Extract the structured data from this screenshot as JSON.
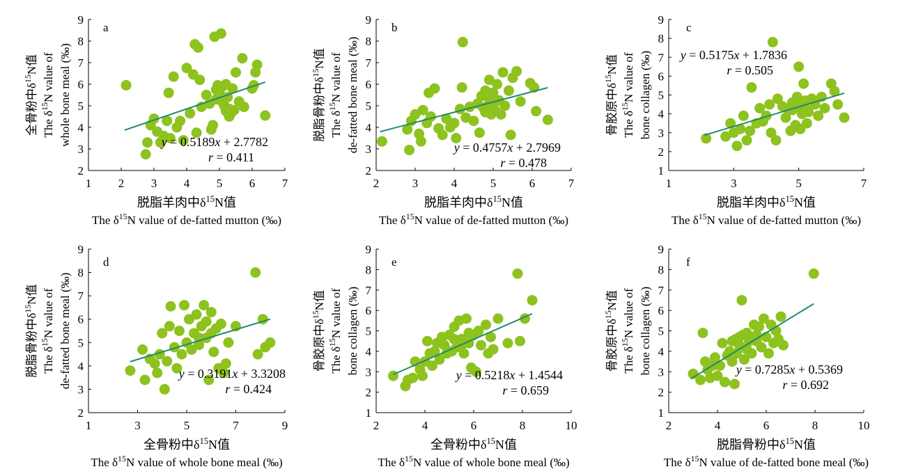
{
  "colors": {
    "point": "#8dc21f",
    "fit_line": "#1e8a6e",
    "axis": "#000000"
  },
  "chart_data": [
    {
      "type": "scatter",
      "panel": "a",
      "xlabel_cn": "脱脂羊肉中δ15N值",
      "xlabel_en": "The δ15N value of de-fatted mutton (‰)",
      "ylabel_cn": "全骨粉中δ15N值",
      "ylabel_en": "The δ15N value of whole bone meal (‰)",
      "xlim": [
        1,
        7
      ],
      "ylim": [
        2,
        9
      ],
      "xticks": [
        1,
        2,
        3,
        4,
        5,
        6,
        7
      ],
      "yticks": [
        2,
        3,
        4,
        5,
        6,
        7,
        8,
        9
      ],
      "equation": "y = 0.5189x + 2.7782",
      "r": "r = 0.411",
      "fit": {
        "slope": 0.5189,
        "intercept": 2.7782,
        "x_range": [
          2.1,
          6.4
        ]
      },
      "points": [
        [
          2.15,
          5.95
        ],
        [
          2.75,
          2.75
        ],
        [
          2.8,
          3.3
        ],
        [
          2.9,
          4.1
        ],
        [
          3.0,
          4.4
        ],
        [
          3.1,
          3.8
        ],
        [
          3.2,
          3.3
        ],
        [
          3.3,
          3.6
        ],
        [
          3.4,
          4.3
        ],
        [
          3.45,
          5.6
        ],
        [
          3.5,
          3.5
        ],
        [
          3.6,
          6.35
        ],
        [
          3.7,
          4.0
        ],
        [
          3.8,
          4.3
        ],
        [
          3.9,
          3.4
        ],
        [
          4.0,
          6.75
        ],
        [
          4.1,
          4.65
        ],
        [
          4.2,
          6.45
        ],
        [
          4.25,
          7.85
        ],
        [
          4.3,
          3.75
        ],
        [
          4.35,
          7.7
        ],
        [
          4.4,
          6.2
        ],
        [
          4.45,
          4.95
        ],
        [
          4.6,
          5.5
        ],
        [
          4.7,
          5.1
        ],
        [
          4.75,
          3.9
        ],
        [
          4.8,
          4.1
        ],
        [
          4.85,
          8.2
        ],
        [
          4.9,
          5.3
        ],
        [
          4.95,
          5.95
        ],
        [
          5.0,
          5.6
        ],
        [
          5.05,
          8.35
        ],
        [
          5.1,
          5.9
        ],
        [
          5.15,
          5.0
        ],
        [
          5.2,
          4.75
        ],
        [
          5.25,
          5.4
        ],
        [
          5.3,
          4.5
        ],
        [
          5.35,
          4.65
        ],
        [
          5.4,
          5.8
        ],
        [
          5.45,
          4.8
        ],
        [
          5.5,
          6.55
        ],
        [
          5.6,
          5.2
        ],
        [
          5.7,
          7.2
        ],
        [
          5.75,
          4.95
        ],
        [
          6.0,
          5.8
        ],
        [
          6.05,
          5.95
        ],
        [
          6.1,
          6.55
        ],
        [
          6.15,
          6.9
        ],
        [
          6.4,
          4.55
        ],
        [
          5.0,
          5.4
        ],
        [
          5.1,
          5.15
        ],
        [
          5.3,
          4.85
        ],
        [
          4.9,
          5.75
        ],
        [
          5.2,
          6.0
        ]
      ]
    },
    {
      "type": "scatter",
      "panel": "b",
      "xlabel_cn": "脱脂羊肉中δ15N值",
      "xlabel_en": "The δ15N value of de-fatted mutton (‰)",
      "ylabel_cn": "脱脂骨粉中δ15N值",
      "ylabel_en": "The δ15N value of de-fatted bone meal (‰)",
      "xlim": [
        2,
        7
      ],
      "ylim": [
        2,
        9
      ],
      "xticks": [
        2,
        3,
        4,
        5,
        6,
        7
      ],
      "yticks": [
        2,
        3,
        4,
        5,
        6,
        7,
        8,
        9
      ],
      "equation": "y = 0.4757x + 2.7969",
      "r": "r = 0.478",
      "fit": {
        "slope": 0.4757,
        "intercept": 2.7969,
        "x_range": [
          2.1,
          6.4
        ]
      },
      "points": [
        [
          2.15,
          3.35
        ],
        [
          2.8,
          3.9
        ],
        [
          2.85,
          2.95
        ],
        [
          2.9,
          4.3
        ],
        [
          3.0,
          4.6
        ],
        [
          3.1,
          3.7
        ],
        [
          3.15,
          3.35
        ],
        [
          3.2,
          4.8
        ],
        [
          3.3,
          4.2
        ],
        [
          3.35,
          5.6
        ],
        [
          3.4,
          4.5
        ],
        [
          3.5,
          5.8
        ],
        [
          3.6,
          3.95
        ],
        [
          3.7,
          3.65
        ],
        [
          3.8,
          4.4
        ],
        [
          3.9,
          4.0
        ],
        [
          4.0,
          4.2
        ],
        [
          4.05,
          3.5
        ],
        [
          4.15,
          4.85
        ],
        [
          4.2,
          5.85
        ],
        [
          4.22,
          7.95
        ],
        [
          4.3,
          4.45
        ],
        [
          4.4,
          4.95
        ],
        [
          4.5,
          4.3
        ],
        [
          4.6,
          5.1
        ],
        [
          4.65,
          3.75
        ],
        [
          4.7,
          5.45
        ],
        [
          4.75,
          4.9
        ],
        [
          4.8,
          5.7
        ],
        [
          4.85,
          5.0
        ],
        [
          4.9,
          6.2
        ],
        [
          4.95,
          4.6
        ],
        [
          5.0,
          5.6
        ],
        [
          5.05,
          4.8
        ],
        [
          5.1,
          6.0
        ],
        [
          5.15,
          5.25
        ],
        [
          5.2,
          4.6
        ],
        [
          5.25,
          6.55
        ],
        [
          5.3,
          5.0
        ],
        [
          5.4,
          5.7
        ],
        [
          5.45,
          3.65
        ],
        [
          5.5,
          6.3
        ],
        [
          5.6,
          6.6
        ],
        [
          5.7,
          5.2
        ],
        [
          5.95,
          6.05
        ],
        [
          6.05,
          5.85
        ],
        [
          6.1,
          4.75
        ],
        [
          6.4,
          4.35
        ],
        [
          4.9,
          5.35
        ],
        [
          5.0,
          4.95
        ],
        [
          4.8,
          4.7
        ]
      ]
    },
    {
      "type": "scatter",
      "panel": "c",
      "xlabel_cn": "脱脂羊肉中δ15N值",
      "xlabel_en": "The δ15N value of de-fatted mutton (‰)",
      "ylabel_cn": "骨胶原中δ15N值",
      "ylabel_en": "The δ15N value of bone collagen (‰)",
      "xlim": [
        1,
        7
      ],
      "ylim": [
        1,
        9
      ],
      "xticks": [
        1,
        3,
        5,
        7
      ],
      "yticks": [
        1,
        2,
        3,
        4,
        5,
        6,
        7,
        8,
        9
      ],
      "equation": "y = 0.5175x + 1.7836",
      "r": "r = 0.505",
      "fit": {
        "slope": 0.5175,
        "intercept": 1.7836,
        "x_range": [
          2.1,
          6.4
        ]
      },
      "points": [
        [
          2.15,
          2.7
        ],
        [
          2.75,
          2.8
        ],
        [
          2.9,
          3.5
        ],
        [
          3.0,
          3.0
        ],
        [
          3.1,
          2.3
        ],
        [
          3.2,
          3.2
        ],
        [
          3.3,
          3.9
        ],
        [
          3.4,
          2.6
        ],
        [
          3.5,
          3.1
        ],
        [
          3.55,
          5.4
        ],
        [
          3.7,
          3.5
        ],
        [
          3.8,
          4.3
        ],
        [
          3.9,
          3.6
        ],
        [
          4.0,
          3.9
        ],
        [
          4.1,
          4.5
        ],
        [
          4.15,
          3.0
        ],
        [
          4.2,
          7.8
        ],
        [
          4.3,
          2.6
        ],
        [
          4.35,
          4.8
        ],
        [
          4.5,
          4.4
        ],
        [
          4.6,
          3.8
        ],
        [
          4.7,
          4.2
        ],
        [
          4.75,
          3.1
        ],
        [
          4.8,
          4.6
        ],
        [
          4.9,
          3.4
        ],
        [
          4.95,
          4.9
        ],
        [
          5.0,
          6.5
        ],
        [
          5.05,
          3.2
        ],
        [
          5.1,
          4.0
        ],
        [
          5.15,
          5.6
        ],
        [
          5.2,
          4.3
        ],
        [
          5.25,
          3.5
        ],
        [
          5.3,
          4.1
        ],
        [
          5.4,
          4.8
        ],
        [
          5.5,
          4.5
        ],
        [
          5.6,
          3.9
        ],
        [
          5.7,
          4.9
        ],
        [
          5.8,
          4.3
        ],
        [
          6.0,
          5.6
        ],
        [
          6.1,
          5.2
        ],
        [
          6.2,
          4.5
        ],
        [
          6.4,
          3.8
        ],
        [
          5.0,
          4.6
        ],
        [
          4.9,
          4.4
        ],
        [
          5.2,
          4.7
        ],
        [
          4.8,
          4.2
        ]
      ]
    },
    {
      "type": "scatter",
      "panel": "d",
      "xlabel_cn": "全骨粉中δ15N值",
      "xlabel_en": "The δ15N value of whole bone meal (‰)",
      "ylabel_cn": "脱脂骨粉中δ15N值",
      "ylabel_en": "The δ15N value of de-fatted bone meal (‰)",
      "xlim": [
        1,
        9
      ],
      "ylim": [
        2,
        9
      ],
      "xticks": [
        1,
        3,
        5,
        7,
        9
      ],
      "yticks": [
        2,
        3,
        4,
        5,
        6,
        7,
        8,
        9
      ],
      "equation": "y = 0.3191x + 3.3208",
      "r": "r = 0.424",
      "fit": {
        "slope": 0.3191,
        "intercept": 3.3208,
        "x_range": [
          2.7,
          8.4
        ]
      },
      "points": [
        [
          2.7,
          3.8
        ],
        [
          3.2,
          4.7
        ],
        [
          3.3,
          3.4
        ],
        [
          3.5,
          4.3
        ],
        [
          3.7,
          4.1
        ],
        [
          3.8,
          3.7
        ],
        [
          3.9,
          4.5
        ],
        [
          4.0,
          5.4
        ],
        [
          4.1,
          3.0
        ],
        [
          4.2,
          4.2
        ],
        [
          4.3,
          5.7
        ],
        [
          4.35,
          6.55
        ],
        [
          4.5,
          4.8
        ],
        [
          4.6,
          3.9
        ],
        [
          4.7,
          5.5
        ],
        [
          4.8,
          4.5
        ],
        [
          4.9,
          6.6
        ],
        [
          5.0,
          5.0
        ],
        [
          5.1,
          6.0
        ],
        [
          5.2,
          4.7
        ],
        [
          5.3,
          5.4
        ],
        [
          5.4,
          6.2
        ],
        [
          5.5,
          4.9
        ],
        [
          5.6,
          5.7
        ],
        [
          5.7,
          6.6
        ],
        [
          5.8,
          5.2
        ],
        [
          5.9,
          3.4
        ],
        [
          6.0,
          6.3
        ],
        [
          6.1,
          4.6
        ],
        [
          6.2,
          5.6
        ],
        [
          6.3,
          3.9
        ],
        [
          6.4,
          5.8
        ],
        [
          6.5,
          3.7
        ],
        [
          6.6,
          4.1
        ],
        [
          6.7,
          5.0
        ],
        [
          7.0,
          5.7
        ],
        [
          7.8,
          8.0
        ],
        [
          7.9,
          4.5
        ],
        [
          8.1,
          6.0
        ],
        [
          8.2,
          4.8
        ],
        [
          8.4,
          5.0
        ],
        [
          5.5,
          5.2
        ],
        [
          5.8,
          5.9
        ],
        [
          6.0,
          5.4
        ]
      ]
    },
    {
      "type": "scatter",
      "panel": "e",
      "xlabel_cn": "全骨粉中δ15N值",
      "xlabel_en": "The δ15N value of whole bone meal (‰)",
      "ylabel_cn": "骨胶原中δ15N值",
      "ylabel_en": "The δ15N value of bone collagen (‰)",
      "xlim": [
        2,
        10
      ],
      "ylim": [
        1,
        9
      ],
      "xticks": [
        2,
        4,
        6,
        8,
        10
      ],
      "yticks": [
        1,
        2,
        3,
        4,
        5,
        6,
        7,
        8,
        9
      ],
      "equation": "y = 0.5218x + 1.4544",
      "r": "r = 0.659",
      "fit": {
        "slope": 0.5218,
        "intercept": 1.4544,
        "x_range": [
          2.7,
          8.4
        ]
      },
      "points": [
        [
          2.7,
          2.8
        ],
        [
          3.2,
          2.3
        ],
        [
          3.3,
          2.6
        ],
        [
          3.5,
          2.7
        ],
        [
          3.6,
          3.5
        ],
        [
          3.8,
          3.1
        ],
        [
          3.9,
          2.8
        ],
        [
          4.0,
          3.5
        ],
        [
          4.1,
          4.5
        ],
        [
          4.2,
          3.9
        ],
        [
          4.3,
          3.3
        ],
        [
          4.4,
          4.0
        ],
        [
          4.5,
          4.4
        ],
        [
          4.6,
          3.6
        ],
        [
          4.7,
          4.7
        ],
        [
          4.8,
          4.3
        ],
        [
          4.9,
          3.9
        ],
        [
          5.0,
          4.8
        ],
        [
          5.1,
          4.0
        ],
        [
          5.2,
          5.2
        ],
        [
          5.3,
          4.2
        ],
        [
          5.4,
          5.5
        ],
        [
          5.5,
          4.6
        ],
        [
          5.6,
          3.9
        ],
        [
          5.7,
          5.6
        ],
        [
          5.8,
          4.4
        ],
        [
          5.9,
          3.2
        ],
        [
          6.0,
          4.8
        ],
        [
          6.1,
          3.0
        ],
        [
          6.2,
          5.0
        ],
        [
          6.3,
          4.3
        ],
        [
          6.5,
          5.3
        ],
        [
          6.6,
          3.9
        ],
        [
          6.7,
          4.7
        ],
        [
          6.8,
          4.1
        ],
        [
          7.0,
          5.6
        ],
        [
          7.4,
          4.4
        ],
        [
          7.8,
          7.8
        ],
        [
          7.9,
          4.5
        ],
        [
          8.1,
          5.6
        ],
        [
          8.4,
          6.5
        ],
        [
          5.5,
          4.3
        ],
        [
          5.8,
          4.9
        ],
        [
          5.2,
          4.6
        ]
      ]
    },
    {
      "type": "scatter",
      "panel": "f",
      "xlabel_cn": "脱脂骨粉中δ15N值",
      "xlabel_en": "The δ15N value of de-fatted bone meal (‰)",
      "ylabel_cn": "骨胶原中δ15N值",
      "ylabel_en": "The δ15N value of bone collagen (‰)",
      "xlim": [
        2,
        10
      ],
      "ylim": [
        1,
        9
      ],
      "xticks": [
        2,
        4,
        6,
        8,
        10
      ],
      "yticks": [
        1,
        2,
        3,
        4,
        5,
        6,
        7,
        8,
        9
      ],
      "equation": "y = 0.7285x + 0.5369",
      "r": "r = 0.692",
      "fit": {
        "slope": 0.7285,
        "intercept": 0.5369,
        "x_range": [
          2.9,
          7.95
        ]
      },
      "points": [
        [
          3.0,
          2.9
        ],
        [
          3.3,
          2.6
        ],
        [
          3.4,
          4.9
        ],
        [
          3.5,
          3.5
        ],
        [
          3.6,
          3.1
        ],
        [
          3.7,
          2.7
        ],
        [
          3.8,
          3.3
        ],
        [
          3.9,
          3.7
        ],
        [
          4.0,
          2.8
        ],
        [
          4.1,
          3.3
        ],
        [
          4.2,
          4.4
        ],
        [
          4.3,
          2.5
        ],
        [
          4.4,
          3.8
        ],
        [
          4.5,
          4.0
        ],
        [
          4.6,
          3.5
        ],
        [
          4.7,
          2.4
        ],
        [
          4.75,
          4.6
        ],
        [
          4.8,
          3.9
        ],
        [
          4.9,
          4.3
        ],
        [
          5.0,
          6.5
        ],
        [
          5.05,
          4.8
        ],
        [
          5.1,
          3.6
        ],
        [
          5.2,
          4.1
        ],
        [
          5.3,
          4.5
        ],
        [
          5.4,
          3.9
        ],
        [
          5.5,
          5.3
        ],
        [
          5.6,
          4.5
        ],
        [
          5.7,
          5.2
        ],
        [
          5.8,
          4.2
        ],
        [
          5.9,
          5.6
        ],
        [
          6.0,
          4.7
        ],
        [
          6.1,
          3.9
        ],
        [
          6.2,
          5.3
        ],
        [
          6.3,
          4.4
        ],
        [
          6.4,
          5.0
        ],
        [
          6.5,
          4.6
        ],
        [
          6.6,
          5.7
        ],
        [
          6.7,
          4.3
        ],
        [
          7.95,
          7.8
        ],
        [
          4.6,
          4.5
        ],
        [
          4.9,
          4.7
        ],
        [
          5.2,
          4.9
        ],
        [
          5.6,
          4.8
        ]
      ]
    }
  ]
}
